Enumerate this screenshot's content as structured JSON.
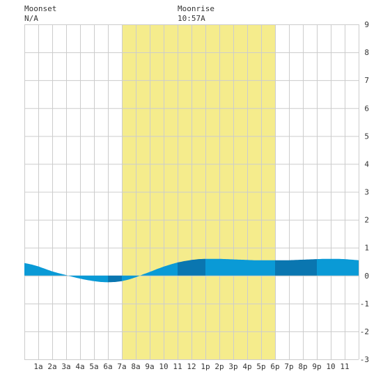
{
  "moon": {
    "moonset_label": "Moonset",
    "moonset_value": "N/A",
    "moonrise_label": "Moonrise",
    "moonrise_value": "10:57A"
  },
  "colors": {
    "grid": "#cccccc",
    "daylight": "#f5ec8c",
    "tide_light": "#0a9ad6",
    "tide_dark": "#0a76b0",
    "axis_text": "#333333"
  },
  "chart_data": {
    "type": "area",
    "x_tick_labels": [
      "1a",
      "2a",
      "3a",
      "4a",
      "5a",
      "6a",
      "7a",
      "8a",
      "9a",
      "10",
      "11",
      "12",
      "1p",
      "2p",
      "3p",
      "4p",
      "5p",
      "6p",
      "7p",
      "8p",
      "9p",
      "10",
      "11"
    ],
    "y_tick_labels": [
      "-3",
      "-2",
      "-1",
      "0",
      "1",
      "2",
      "3",
      "4",
      "5",
      "6",
      "7",
      "8",
      "9"
    ],
    "x_range_hours": [
      0,
      24
    ],
    "y_range_ft": [
      -3,
      9
    ],
    "grid": true,
    "daylight_hours": [
      7.0,
      18.0
    ],
    "tide_series": {
      "hours": [
        0,
        0.5,
        1,
        1.5,
        2,
        2.5,
        3,
        3.5,
        4,
        4.5,
        5,
        5.5,
        6,
        6.5,
        7,
        7.5,
        8,
        8.5,
        9,
        9.5,
        10,
        10.5,
        11,
        11.5,
        12,
        12.5,
        13,
        13.5,
        14,
        14.5,
        15,
        15.5,
        16,
        16.5,
        17,
        17.5,
        18,
        18.5,
        19,
        19.5,
        20,
        20.5,
        21,
        21.5,
        22,
        22.5,
        23,
        23.5,
        24
      ],
      "heights_ft": [
        0.45,
        0.4,
        0.33,
        0.24,
        0.15,
        0.08,
        0.02,
        -0.05,
        -0.11,
        -0.16,
        -0.2,
        -0.23,
        -0.24,
        -0.23,
        -0.2,
        -0.14,
        -0.06,
        0.04,
        0.13,
        0.23,
        0.32,
        0.4,
        0.47,
        0.52,
        0.56,
        0.59,
        0.6,
        0.6,
        0.6,
        0.59,
        0.58,
        0.57,
        0.56,
        0.55,
        0.55,
        0.55,
        0.55,
        0.55,
        0.55,
        0.56,
        0.57,
        0.58,
        0.59,
        0.6,
        0.6,
        0.6,
        0.59,
        0.57,
        0.55
      ]
    }
  }
}
